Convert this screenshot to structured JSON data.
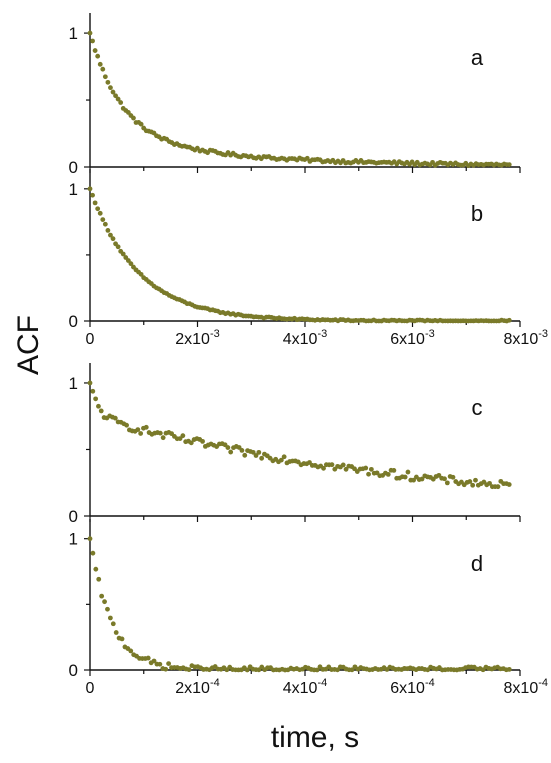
{
  "figure": {
    "ylabel": "ACF",
    "xlabel": "time, s",
    "marker_color": "#7a7a2a"
  },
  "chart_data": [
    {
      "type": "scatter",
      "panel_label": "a",
      "ylim": [
        0,
        1.15
      ],
      "xlim": [
        0,
        0.008
      ],
      "yticks": [
        0,
        1
      ],
      "ytick_labels": [
        "0",
        "1"
      ],
      "x_ticks_labeled": false,
      "decay": {
        "model": "double-exponential",
        "amp1": 0.8,
        "tau1": 0.0006,
        "amp2": 0.2,
        "tau2": 0.003
      }
    },
    {
      "type": "scatter",
      "panel_label": "b",
      "ylim": [
        0,
        1.15
      ],
      "xlim": [
        0,
        0.008
      ],
      "yticks": [
        0,
        1
      ],
      "ytick_labels": [
        "0",
        "1"
      ],
      "x_ticks_labeled": true,
      "xtick_values": [
        0,
        0.002,
        0.004,
        0.006,
        0.008
      ],
      "xtick_labels": [
        {
          "base": "0",
          "exp": ""
        },
        {
          "base": "2x10",
          "exp": "-3"
        },
        {
          "base": "4x10",
          "exp": "-3"
        },
        {
          "base": "6x10",
          "exp": "-3"
        },
        {
          "base": "8x10",
          "exp": "-3"
        }
      ],
      "decay": {
        "model": "single-exponential",
        "amp1": 1.0,
        "tau1": 0.0009
      }
    },
    {
      "type": "scatter",
      "panel_label": "c",
      "ylim": [
        0,
        1.15
      ],
      "xlim": [
        0,
        0.0008
      ],
      "yticks": [
        0,
        1
      ],
      "ytick_labels": [
        "0",
        "1"
      ],
      "x_ticks_labeled": false,
      "decay": {
        "model": "double-exponential",
        "amp1": 0.25,
        "tau1": 1.5e-05,
        "amp2": 0.75,
        "tau2": 0.00065
      }
    },
    {
      "type": "scatter",
      "panel_label": "d",
      "ylim": [
        0,
        1.15
      ],
      "xlim": [
        0,
        0.0008
      ],
      "yticks": [
        0,
        1
      ],
      "ytick_labels": [
        "0",
        "1"
      ],
      "x_ticks_labeled": true,
      "xtick_values": [
        0,
        0.0002,
        0.0004,
        0.0006,
        0.0008
      ],
      "xtick_labels": [
        {
          "base": "0",
          "exp": ""
        },
        {
          "base": "2x10",
          "exp": "-4"
        },
        {
          "base": "4x10",
          "exp": "-4"
        },
        {
          "base": "6x10",
          "exp": "-4"
        },
        {
          "base": "8x10",
          "exp": "-4"
        }
      ],
      "decay": {
        "model": "single-exponential",
        "amp1": 1.0,
        "tau1": 4e-05
      }
    }
  ]
}
